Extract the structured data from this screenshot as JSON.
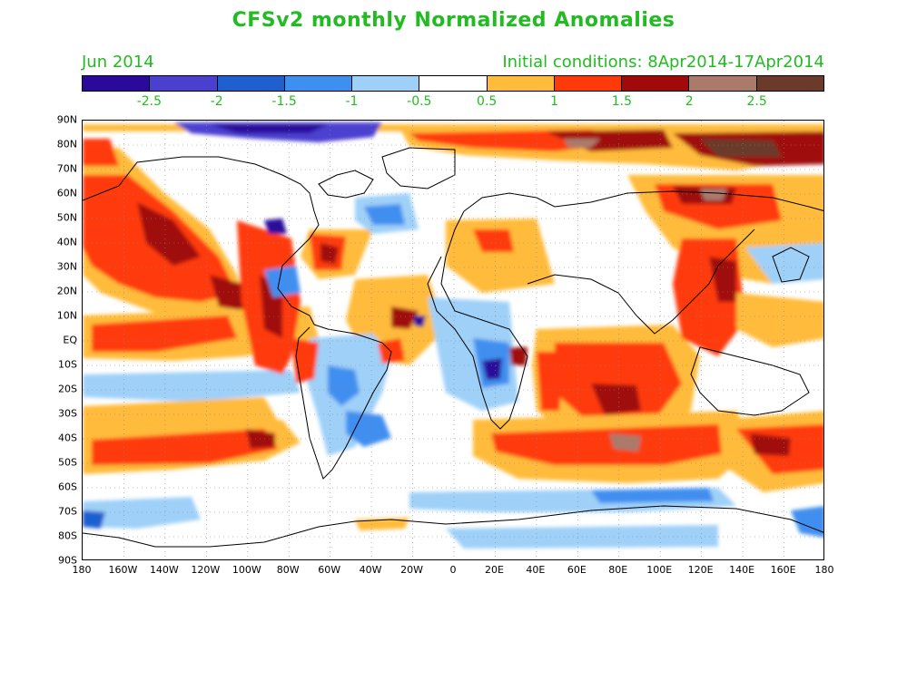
{
  "title": "CFSv2 monthly Normalized Anomalies",
  "month": "Jun 2014",
  "initial_conditions": "Initial conditions: 8Apr2014-17Apr2014",
  "colorbar": {
    "colors": [
      "#2a0a9a",
      "#4b3fd0",
      "#1f5fd0",
      "#3f8ff0",
      "#9fd0f8",
      "#ffffff",
      "#ffbb3b",
      "#ff3a0a",
      "#a00a0a",
      "#aa7a6a",
      "#6a3a2a"
    ],
    "labels": [
      "-2.5",
      "-2",
      "-1.5",
      "-1",
      "-0.5",
      "0.5",
      "1",
      "1.5",
      "2",
      "2.5"
    ]
  },
  "axes": {
    "lat_labels": [
      "90N",
      "80N",
      "70N",
      "60N",
      "50N",
      "40N",
      "30N",
      "20N",
      "10N",
      "EQ",
      "10S",
      "20S",
      "30S",
      "40S",
      "50S",
      "60S",
      "70S",
      "80S",
      "90S"
    ],
    "lon_labels": [
      "180",
      "160W",
      "140W",
      "120W",
      "100W",
      "80W",
      "60W",
      "40W",
      "20W",
      "0",
      "20E",
      "40E",
      "60E",
      "80E",
      "100E",
      "120E",
      "140E",
      "160E",
      "180"
    ]
  }
}
